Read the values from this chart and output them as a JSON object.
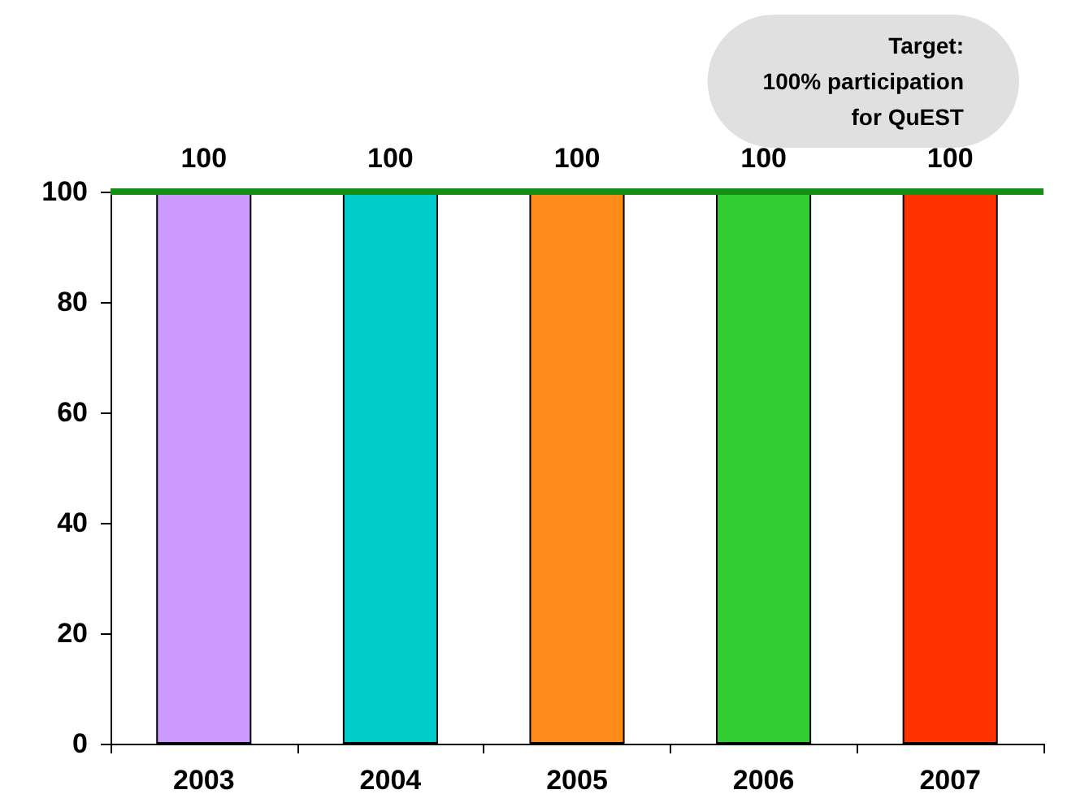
{
  "chart_data": {
    "type": "bar",
    "categories": [
      "2003",
      "2004",
      "2005",
      "2006",
      "2007"
    ],
    "values": [
      100,
      100,
      100,
      100,
      100
    ],
    "colors": [
      "#cc99ff",
      "#00cccc",
      "#ff8c1a",
      "#33cc33",
      "#ff3300"
    ],
    "ylim": [
      0,
      100
    ],
    "yticks": [
      0,
      20,
      40,
      60,
      80,
      100
    ],
    "grid": false,
    "data_labels": true,
    "ref_lines": [
      {
        "axis": "y",
        "value": 100,
        "label": "Target:\n100% participation\nfor QuEST",
        "color": "#168f16",
        "line_style": "solid"
      }
    ]
  }
}
